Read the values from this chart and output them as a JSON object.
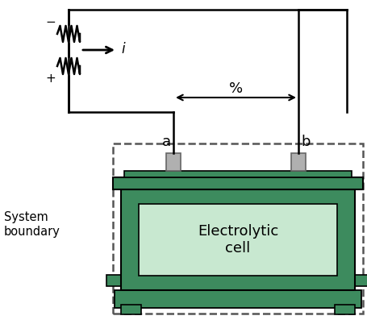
{
  "bg_color": "#ffffff",
  "green_dark": "#3d8b5e",
  "green_light": "#c8e8d0",
  "gray_terminal": "#b0b0b0",
  "gray_terminal_edge": "#666666",
  "wire_color": "#000000",
  "dashed_color": "#555555",
  "text_color": "#000000",
  "label_a": "a",
  "label_b": "b",
  "label_i": "i",
  "label_voltage": "%",
  "label_minus": "−",
  "label_plus": "+",
  "label_system": "System\nboundary",
  "label_cell": "Electrolytic\ncell"
}
